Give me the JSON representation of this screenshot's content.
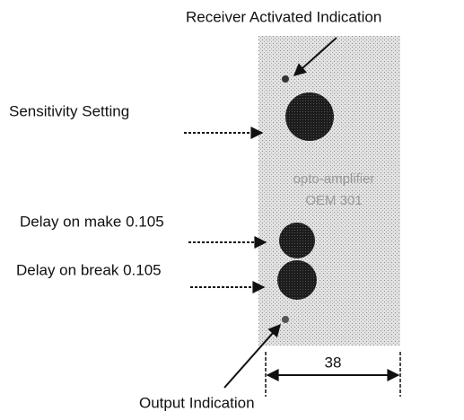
{
  "labels": {
    "receiver": "Receiver Activated Indication",
    "sensitivity": "Sensitivity Setting",
    "delay_make": "Delay on make 0.105",
    "delay_break": "Delay on break 0.105",
    "output": "Output Indication"
  },
  "panel": {
    "line1": "opto-amplifier",
    "line2": "OEM 301"
  },
  "dimension": "38"
}
